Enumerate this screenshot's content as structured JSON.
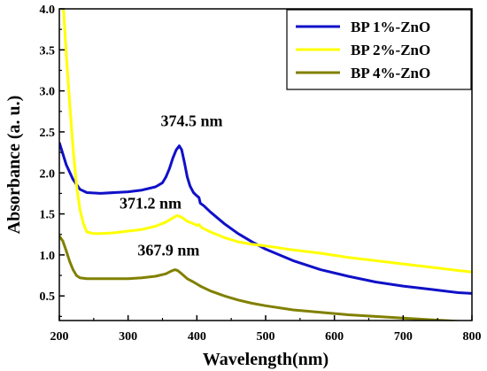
{
  "chart_data": {
    "type": "line",
    "title": "",
    "xlabel": "Wavelength(nm)",
    "ylabel": "Absorbance (a. u.)",
    "xlim": [
      200,
      800
    ],
    "ylim": [
      0.2,
      4.0
    ],
    "x_ticks": [
      200,
      300,
      400,
      500,
      600,
      700,
      800
    ],
    "y_ticks": [
      0.5,
      1.0,
      1.5,
      2.0,
      2.5,
      3.0,
      3.5,
      4.0
    ],
    "grid": false,
    "legend_position": "top-right",
    "series": [
      {
        "name": "BP 1%-ZnO",
        "color": "#1010c8",
        "x": [
          200,
          210,
          220,
          230,
          240,
          260,
          280,
          300,
          320,
          340,
          350,
          355,
          360,
          365,
          370,
          374.5,
          378,
          382,
          386,
          390,
          395,
          400,
          403,
          405,
          410,
          420,
          440,
          460,
          480,
          500,
          540,
          580,
          620,
          660,
          700,
          740,
          780,
          800
        ],
        "y": [
          2.37,
          2.1,
          1.92,
          1.8,
          1.76,
          1.75,
          1.76,
          1.77,
          1.79,
          1.83,
          1.88,
          1.95,
          2.05,
          2.18,
          2.28,
          2.33,
          2.28,
          2.12,
          1.95,
          1.84,
          1.76,
          1.72,
          1.7,
          1.63,
          1.6,
          1.52,
          1.38,
          1.26,
          1.16,
          1.07,
          0.93,
          0.82,
          0.74,
          0.67,
          0.62,
          0.58,
          0.54,
          0.53
        ]
      },
      {
        "name": "BP 2%-ZnO",
        "color": "#ffff00",
        "x": [
          206,
          210,
          215,
          220,
          225,
          230,
          235,
          240,
          250,
          260,
          280,
          300,
          320,
          340,
          355,
          365,
          371.2,
          378,
          386,
          395,
          400,
          403,
          406,
          410,
          420,
          440,
          460,
          480,
          500,
          540,
          580,
          620,
          660,
          700,
          740,
          780,
          800
        ],
        "y": [
          4.0,
          3.45,
          2.85,
          2.3,
          1.85,
          1.55,
          1.38,
          1.28,
          1.26,
          1.26,
          1.27,
          1.29,
          1.31,
          1.35,
          1.4,
          1.45,
          1.48,
          1.46,
          1.41,
          1.38,
          1.36,
          1.37,
          1.34,
          1.32,
          1.28,
          1.21,
          1.16,
          1.13,
          1.11,
          1.06,
          1.02,
          0.97,
          0.93,
          0.89,
          0.85,
          0.81,
          0.79
        ]
      },
      {
        "name": "BP 4%-ZnO",
        "color": "#808000",
        "x": [
          200,
          205,
          210,
          215,
          220,
          225,
          230,
          240,
          260,
          280,
          300,
          320,
          340,
          355,
          362,
          367.9,
          372,
          378,
          386,
          395,
          405,
          420,
          440,
          460,
          480,
          500,
          540,
          580,
          620,
          660,
          700,
          740,
          780,
          800
        ],
        "y": [
          1.23,
          1.17,
          1.05,
          0.92,
          0.82,
          0.75,
          0.72,
          0.71,
          0.71,
          0.71,
          0.71,
          0.72,
          0.74,
          0.77,
          0.8,
          0.82,
          0.81,
          0.77,
          0.71,
          0.67,
          0.62,
          0.56,
          0.5,
          0.45,
          0.41,
          0.38,
          0.33,
          0.3,
          0.27,
          0.25,
          0.23,
          0.21,
          0.19,
          0.18
        ]
      }
    ],
    "annotations": [
      {
        "text": "374.5 nm",
        "x": 374.5,
        "y": 2.33
      },
      {
        "text": "371.2 nm",
        "x": 371.2,
        "y": 1.48
      },
      {
        "text": "367.9 nm",
        "x": 367.9,
        "y": 0.82
      }
    ]
  }
}
